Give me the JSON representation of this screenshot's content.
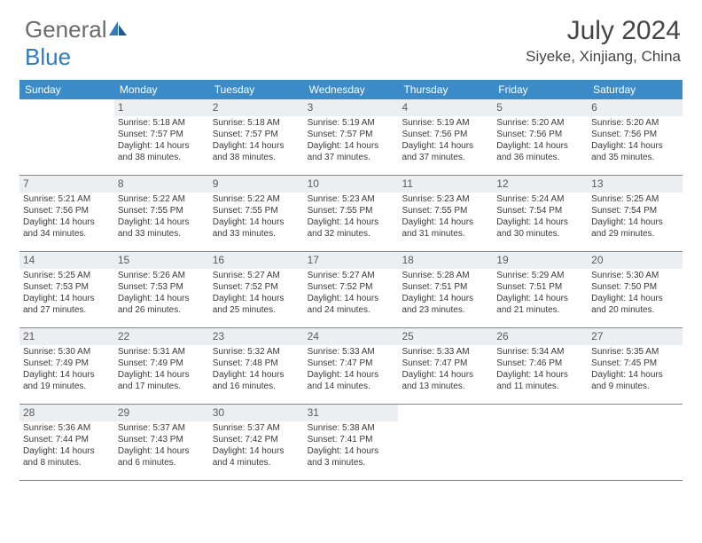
{
  "brand": {
    "name_part1": "General",
    "name_part2": "Blue"
  },
  "title": "July 2024",
  "location": "Siyeke, Xinjiang, China",
  "weekday_header_bg": "#3b8bc8",
  "weekday_text_color": "#ffffff",
  "daynum_bg": "#eceff2",
  "border_color": "#6a8db0",
  "weekdays": [
    "Sunday",
    "Monday",
    "Tuesday",
    "Wednesday",
    "Thursday",
    "Friday",
    "Saturday"
  ],
  "first_weekday_index": 1,
  "days": [
    {
      "n": 1,
      "sunrise": "5:18 AM",
      "sunset": "7:57 PM",
      "dl_h": 14,
      "dl_m": 38
    },
    {
      "n": 2,
      "sunrise": "5:18 AM",
      "sunset": "7:57 PM",
      "dl_h": 14,
      "dl_m": 38
    },
    {
      "n": 3,
      "sunrise": "5:19 AM",
      "sunset": "7:57 PM",
      "dl_h": 14,
      "dl_m": 37
    },
    {
      "n": 4,
      "sunrise": "5:19 AM",
      "sunset": "7:56 PM",
      "dl_h": 14,
      "dl_m": 37
    },
    {
      "n": 5,
      "sunrise": "5:20 AM",
      "sunset": "7:56 PM",
      "dl_h": 14,
      "dl_m": 36
    },
    {
      "n": 6,
      "sunrise": "5:20 AM",
      "sunset": "7:56 PM",
      "dl_h": 14,
      "dl_m": 35
    },
    {
      "n": 7,
      "sunrise": "5:21 AM",
      "sunset": "7:56 PM",
      "dl_h": 14,
      "dl_m": 34
    },
    {
      "n": 8,
      "sunrise": "5:22 AM",
      "sunset": "7:55 PM",
      "dl_h": 14,
      "dl_m": 33
    },
    {
      "n": 9,
      "sunrise": "5:22 AM",
      "sunset": "7:55 PM",
      "dl_h": 14,
      "dl_m": 33
    },
    {
      "n": 10,
      "sunrise": "5:23 AM",
      "sunset": "7:55 PM",
      "dl_h": 14,
      "dl_m": 32
    },
    {
      "n": 11,
      "sunrise": "5:23 AM",
      "sunset": "7:55 PM",
      "dl_h": 14,
      "dl_m": 31
    },
    {
      "n": 12,
      "sunrise": "5:24 AM",
      "sunset": "7:54 PM",
      "dl_h": 14,
      "dl_m": 30
    },
    {
      "n": 13,
      "sunrise": "5:25 AM",
      "sunset": "7:54 PM",
      "dl_h": 14,
      "dl_m": 29
    },
    {
      "n": 14,
      "sunrise": "5:25 AM",
      "sunset": "7:53 PM",
      "dl_h": 14,
      "dl_m": 27
    },
    {
      "n": 15,
      "sunrise": "5:26 AM",
      "sunset": "7:53 PM",
      "dl_h": 14,
      "dl_m": 26
    },
    {
      "n": 16,
      "sunrise": "5:27 AM",
      "sunset": "7:52 PM",
      "dl_h": 14,
      "dl_m": 25
    },
    {
      "n": 17,
      "sunrise": "5:27 AM",
      "sunset": "7:52 PM",
      "dl_h": 14,
      "dl_m": 24
    },
    {
      "n": 18,
      "sunrise": "5:28 AM",
      "sunset": "7:51 PM",
      "dl_h": 14,
      "dl_m": 23
    },
    {
      "n": 19,
      "sunrise": "5:29 AM",
      "sunset": "7:51 PM",
      "dl_h": 14,
      "dl_m": 21
    },
    {
      "n": 20,
      "sunrise": "5:30 AM",
      "sunset": "7:50 PM",
      "dl_h": 14,
      "dl_m": 20
    },
    {
      "n": 21,
      "sunrise": "5:30 AM",
      "sunset": "7:49 PM",
      "dl_h": 14,
      "dl_m": 19
    },
    {
      "n": 22,
      "sunrise": "5:31 AM",
      "sunset": "7:49 PM",
      "dl_h": 14,
      "dl_m": 17
    },
    {
      "n": 23,
      "sunrise": "5:32 AM",
      "sunset": "7:48 PM",
      "dl_h": 14,
      "dl_m": 16
    },
    {
      "n": 24,
      "sunrise": "5:33 AM",
      "sunset": "7:47 PM",
      "dl_h": 14,
      "dl_m": 14
    },
    {
      "n": 25,
      "sunrise": "5:33 AM",
      "sunset": "7:47 PM",
      "dl_h": 14,
      "dl_m": 13
    },
    {
      "n": 26,
      "sunrise": "5:34 AM",
      "sunset": "7:46 PM",
      "dl_h": 14,
      "dl_m": 11
    },
    {
      "n": 27,
      "sunrise": "5:35 AM",
      "sunset": "7:45 PM",
      "dl_h": 14,
      "dl_m": 9
    },
    {
      "n": 28,
      "sunrise": "5:36 AM",
      "sunset": "7:44 PM",
      "dl_h": 14,
      "dl_m": 8
    },
    {
      "n": 29,
      "sunrise": "5:37 AM",
      "sunset": "7:43 PM",
      "dl_h": 14,
      "dl_m": 6
    },
    {
      "n": 30,
      "sunrise": "5:37 AM",
      "sunset": "7:42 PM",
      "dl_h": 14,
      "dl_m": 4
    },
    {
      "n": 31,
      "sunrise": "5:38 AM",
      "sunset": "7:41 PM",
      "dl_h": 14,
      "dl_m": 3
    }
  ],
  "labels": {
    "sunrise_prefix": "Sunrise: ",
    "sunset_prefix": "Sunset: ",
    "daylight_prefix": "Daylight: ",
    "hours_word": " hours",
    "and_word": "and ",
    "minutes_word": " minutes."
  }
}
